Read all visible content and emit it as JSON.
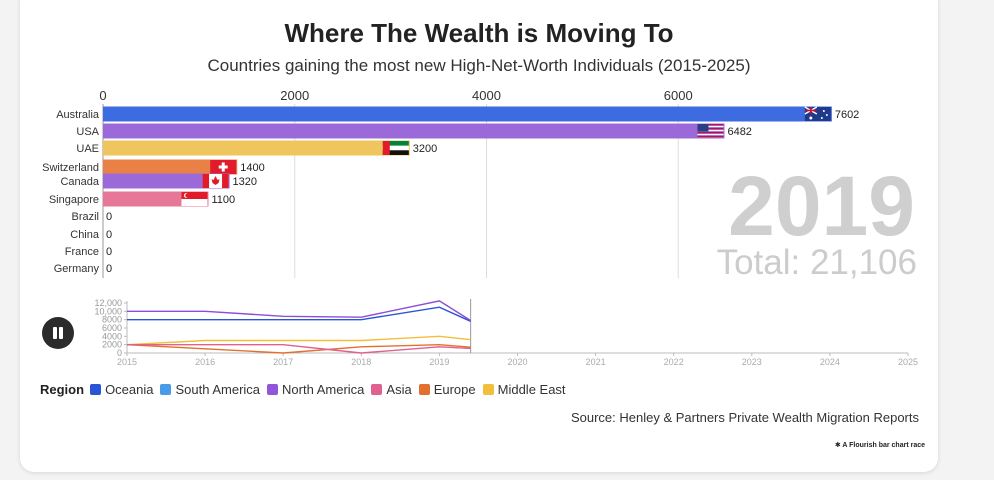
{
  "header": {
    "title": "Where The Wealth is Moving To",
    "subtitle": "Countries gaining the most new High-Net-Worth Individuals (2015-2025)"
  },
  "chart_data": [
    {
      "type": "bar",
      "orientation": "horizontal",
      "current_year": "2019",
      "total_label": "Total: 21,106",
      "x_ticks": [
        "0",
        "2000",
        "4000",
        "6000"
      ],
      "xlim": [
        0,
        8000
      ],
      "grid": true,
      "categories": [
        "Australia",
        "USA",
        "UAE",
        "Switzerland",
        "Canada",
        "Singapore",
        "Brazil",
        "China",
        "France",
        "Germany"
      ],
      "values": [
        7602,
        6482,
        3200,
        1400,
        1320,
        1100,
        0,
        0,
        0,
        0
      ],
      "value_labels": [
        "7602",
        "6482",
        "3200",
        "1400",
        "1320",
        "1100",
        "0",
        "0",
        "0",
        "0"
      ],
      "regions": [
        "Oceania",
        "North America",
        "Middle East",
        "Europe",
        "North America",
        "Asia",
        "South America",
        "Asia",
        "Europe",
        "Europe"
      ]
    },
    {
      "type": "line",
      "x_ticks": [
        "2015",
        "2016",
        "2017",
        "2018",
        "2019",
        "2020",
        "2021",
        "2022",
        "2023",
        "2024",
        "2025"
      ],
      "y_ticks": [
        "0",
        "2000",
        "4000",
        "6000",
        "8000",
        "10,000",
        "12,000"
      ],
      "xlim": [
        2015,
        2025
      ],
      "ylim": [
        0,
        12000
      ],
      "cursor_x": 2019.4,
      "series": [
        {
          "region": "Oceania",
          "x": [
            2015,
            2016,
            2017,
            2018,
            2019,
            2019.4
          ],
          "values": [
            8000,
            8000,
            8000,
            8000,
            11000,
            7600
          ]
        },
        {
          "region": "North America",
          "x": [
            2015,
            2016,
            2017,
            2018,
            2019,
            2019.4
          ],
          "values": [
            10000,
            10000,
            8800,
            8600,
            12500,
            7800
          ]
        },
        {
          "region": "Middle East",
          "x": [
            2015,
            2016,
            2017,
            2018,
            2019,
            2019.4
          ],
          "values": [
            2000,
            3000,
            3000,
            3000,
            4000,
            3200
          ]
        },
        {
          "region": "Europe",
          "x": [
            2015,
            2016,
            2017,
            2018,
            2019,
            2019.4
          ],
          "values": [
            2000,
            1000,
            0,
            1500,
            2000,
            1400
          ]
        },
        {
          "region": "Asia",
          "x": [
            2015,
            2016,
            2017,
            2018,
            2019,
            2019.4
          ],
          "values": [
            2000,
            2000,
            2000,
            0,
            1500,
            1100
          ]
        }
      ]
    }
  ],
  "legend": {
    "title": "Region",
    "items": [
      {
        "label": "Oceania",
        "color": "#2a56d6"
      },
      {
        "label": "South America",
        "color": "#4a9aea"
      },
      {
        "label": "North America",
        "color": "#9256d9"
      },
      {
        "label": "Asia",
        "color": "#e0608f"
      },
      {
        "label": "Europe",
        "color": "#e3702e"
      },
      {
        "label": "Middle East",
        "color": "#f2bf3c"
      }
    ]
  },
  "colors": {
    "Oceania": "#3d6be0",
    "South America": "#4a9aea",
    "North America": "#9c6ad8",
    "Asia": "#e77799",
    "Europe": "#e98147",
    "Middle East": "#efc65d"
  },
  "flags": {
    "Australia": "australia-flag-icon",
    "USA": "usa-flag-icon",
    "UAE": "uae-flag-icon",
    "Switzerland": "switzerland-flag-icon",
    "Canada": "canada-flag-icon",
    "Singapore": "singapore-flag-icon"
  },
  "controls": {
    "pause_icon": "pause-icon"
  },
  "footer": {
    "source": "Source: Henley & Partners Private Wealth Migration Reports",
    "credit": "✱ A Flourish bar chart race"
  }
}
